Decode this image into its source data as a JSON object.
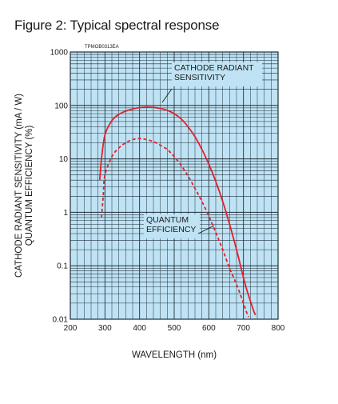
{
  "figure": {
    "title": "Figure 2: Typical spectral response",
    "code": "TPMOB0313EA"
  },
  "colors": {
    "plot_bg": "#bfe3f4",
    "grid": "#1f2f3a",
    "curve": "#e3202a"
  },
  "chart_data": {
    "type": "line",
    "title": "Figure 2: Typical spectral response",
    "xlabel": "WAVELENGTH (nm)",
    "ylabel": [
      "CATHODE RADIANT SENSITIVITY (mA / W)",
      "QUANTUM EFFICIENCY (%)"
    ],
    "xlim": [
      200,
      800
    ],
    "ylim": [
      0.01,
      1000
    ],
    "yscale": "log",
    "grid": true,
    "x_ticks": [
      "200",
      "300",
      "400",
      "500",
      "600",
      "700",
      "800"
    ],
    "y_ticks": [
      "0.01",
      "0.1",
      "1",
      "10",
      "100",
      "1000"
    ],
    "series": [
      {
        "name": "CATHODE RADIANT SENSITIVITY",
        "style": "solid",
        "x": [
          285,
          290,
          300,
          320,
          340,
          360,
          380,
          400,
          420,
          440,
          460,
          480,
          500,
          520,
          540,
          560,
          580,
          600,
          620,
          640,
          660,
          680,
          700,
          710,
          720,
          730,
          735
        ],
        "y": [
          4,
          10,
          28,
          52,
          68,
          78,
          86,
          91,
          93,
          92,
          88,
          81,
          70,
          56,
          40,
          26,
          15,
          8.0,
          3.8,
          1.6,
          0.6,
          0.2,
          0.06,
          0.035,
          0.022,
          0.014,
          0.012
        ]
      },
      {
        "name": "QUANTUM EFFICIENCY",
        "style": "dashed",
        "x": [
          290,
          295,
          300,
          320,
          340,
          360,
          380,
          400,
          420,
          440,
          460,
          480,
          500,
          520,
          540,
          560,
          580,
          600,
          620,
          640,
          660,
          680,
          700,
          710,
          715
        ],
        "y": [
          0.8,
          2,
          5,
          11,
          16,
          20,
          23,
          24,
          23,
          21,
          18,
          15,
          11,
          7.5,
          4.8,
          2.8,
          1.6,
          0.85,
          0.42,
          0.2,
          0.09,
          0.045,
          0.02,
          0.013,
          0.011
        ]
      }
    ],
    "annotations": [
      {
        "lines": [
          "CATHODE RADIANT",
          "SENSITIVITY"
        ]
      },
      {
        "lines": [
          "QUANTUM",
          "EFFICIENCY"
        ]
      }
    ]
  }
}
